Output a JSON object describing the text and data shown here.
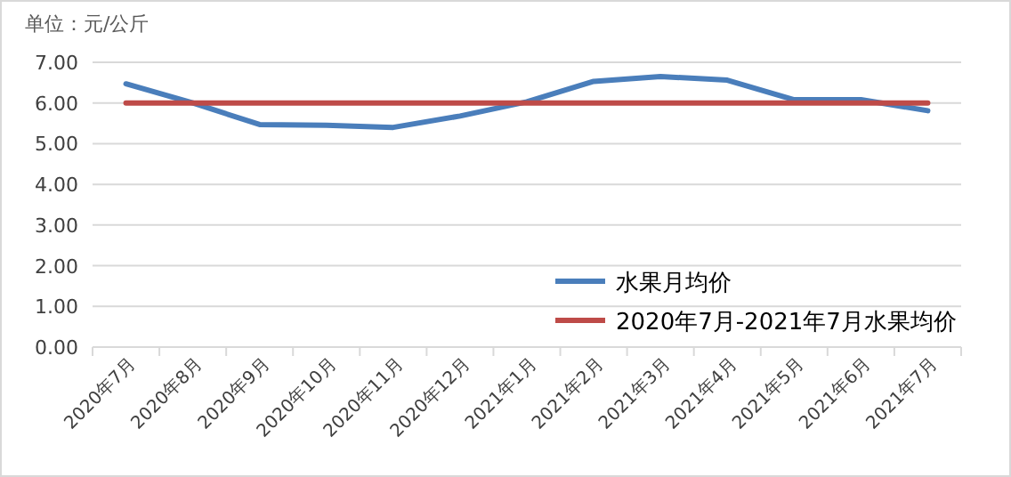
{
  "chart_data": {
    "type": "line",
    "ylabel": "单位：元/公斤",
    "categories": [
      "2020年7月",
      "2020年8月",
      "2020年9月",
      "2020年10月",
      "2020年11月",
      "2020年12月",
      "2021年1月",
      "2021年2月",
      "2021年3月",
      "2021年4月",
      "2021年5月",
      "2021年6月",
      "2021年7月"
    ],
    "series": [
      {
        "name": "水果月均价",
        "color": "#4a7ebb",
        "values": [
          6.47,
          6.0,
          5.47,
          5.45,
          5.4,
          5.68,
          6.03,
          6.53,
          6.65,
          6.56,
          6.08,
          6.08,
          5.81
        ]
      },
      {
        "name": "2020年7月-2021年7月水果均价",
        "color": "#be4b48",
        "values": [
          6.0,
          6.0,
          6.0,
          6.0,
          6.0,
          6.0,
          6.0,
          6.0,
          6.0,
          6.0,
          6.0,
          6.0,
          6.0
        ]
      }
    ],
    "ylim": [
      0,
      7
    ],
    "yticks": [
      {
        "value": 0,
        "label": "0.00"
      },
      {
        "value": 1,
        "label": "1.00"
      },
      {
        "value": 2,
        "label": "2.00"
      },
      {
        "value": 3,
        "label": "3.00"
      },
      {
        "value": 4,
        "label": "4.00"
      },
      {
        "value": 5,
        "label": "5.00"
      },
      {
        "value": 6,
        "label": "6.00"
      },
      {
        "value": 7,
        "label": "7.00"
      }
    ],
    "grid": "y",
    "legend": "bottom right",
    "marker": "none",
    "line_style": "solid"
  }
}
